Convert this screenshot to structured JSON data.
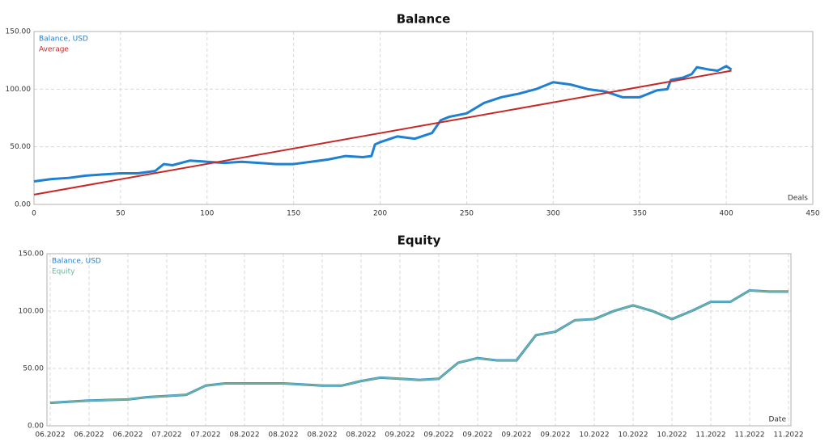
{
  "chart_data": [
    {
      "type": "line",
      "title": "Balance",
      "x_label": "Deals",
      "xlim": [
        0,
        450
      ],
      "xticks": [
        0,
        50,
        100,
        150,
        200,
        250,
        300,
        350,
        400,
        450
      ],
      "ylim": [
        0,
        150
      ],
      "yticks": [
        {
          "value": 0,
          "label": "0.00"
        },
        {
          "value": 50,
          "label": "50.00"
        },
        {
          "value": 100,
          "label": "100.00"
        },
        {
          "value": 150,
          "label": "150.00"
        }
      ],
      "grid": true,
      "legend": "upper left",
      "series": [
        {
          "name": "Balance, USD",
          "color": "#1f7fd1",
          "x": [
            0,
            10,
            20,
            30,
            40,
            50,
            60,
            70,
            75,
            80,
            90,
            100,
            110,
            120,
            130,
            140,
            150,
            160,
            170,
            180,
            190,
            195,
            197,
            200,
            210,
            220,
            230,
            235,
            240,
            250,
            260,
            270,
            280,
            290,
            300,
            310,
            320,
            330,
            340,
            350,
            360,
            366,
            368,
            375,
            380,
            383,
            390,
            395,
            400,
            403
          ],
          "values": [
            20,
            22,
            23,
            25,
            26,
            27,
            27,
            29,
            35,
            34,
            38,
            37,
            36,
            37,
            36,
            35,
            35,
            37,
            39,
            42,
            41,
            42,
            52,
            54,
            59,
            57,
            62,
            73,
            76,
            79,
            88,
            93,
            96,
            100,
            106,
            104,
            100,
            98,
            93,
            93,
            99,
            100,
            108,
            110,
            113,
            119,
            117,
            116,
            120,
            117
          ]
        },
        {
          "name": "Average",
          "color": "#c62828",
          "x": [
            0,
            403
          ],
          "values": [
            8.5,
            116
          ]
        }
      ]
    },
    {
      "type": "line",
      "title": "Equity",
      "x_label": "Date",
      "categories": [
        "06.2022",
        null,
        "06.2022",
        null,
        "06.2022",
        null,
        "07.2022",
        null,
        "07.2022",
        null,
        "08.2022",
        null,
        "08.2022",
        null,
        "08.2022",
        null,
        "08.2022",
        null,
        "09.2022",
        null,
        "09.2022",
        null,
        "09.2022",
        null,
        "09.2022",
        null,
        "09.2022",
        null,
        "10.2022",
        null,
        "10.2022",
        null,
        "10.2022",
        null,
        "11.2022",
        null,
        "11.2022",
        null,
        "11.2022"
      ],
      "ylim": [
        0,
        150
      ],
      "yticks": [
        {
          "value": 0,
          "label": "0.00"
        },
        {
          "value": 50,
          "label": "50.00"
        },
        {
          "value": 100,
          "label": "100.00"
        },
        {
          "value": 150,
          "label": "150.00"
        }
      ],
      "grid": true,
      "legend": "upper left",
      "series": [
        {
          "name": "Balance, USD",
          "color": "#1f7fd1",
          "values": [
            20,
            21,
            22,
            22.5,
            23,
            25,
            26,
            27,
            35,
            37,
            37,
            37,
            37,
            36,
            35,
            35,
            39,
            42,
            41,
            40,
            41,
            55,
            59,
            57,
            57,
            79,
            82,
            92,
            93,
            100,
            105,
            100,
            93,
            100,
            108,
            108,
            118,
            117,
            117
          ]
        },
        {
          "name": "Equity",
          "color": "#6fb39c",
          "values": [
            20,
            21,
            22,
            22.5,
            23,
            25,
            26,
            27,
            35,
            37,
            37,
            37,
            37,
            36,
            35,
            35,
            39,
            42,
            41,
            40,
            41,
            55,
            59,
            57,
            57,
            79,
            82,
            92,
            93,
            100,
            105,
            100,
            93,
            100,
            108,
            108,
            118,
            117,
            117
          ]
        }
      ]
    }
  ]
}
